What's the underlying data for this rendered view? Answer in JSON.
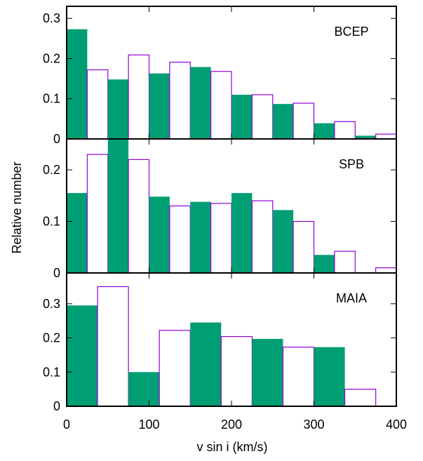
{
  "chart_data": {
    "type": "bar",
    "xlabel": "v sin i (km/s)",
    "ylabel": "Relative number",
    "xlim": [
      0,
      400
    ],
    "xticks": [
      0,
      100,
      200,
      300,
      400
    ],
    "colors": {
      "filled": "#009e73",
      "outline": "#9400d3",
      "frame": "#000000"
    },
    "panels": [
      {
        "label": "BCEP",
        "ylim": [
          0,
          0.33
        ],
        "yticks": [
          0,
          0.1,
          0.2,
          0.3
        ],
        "ytick_labels": [
          "0",
          "0.1",
          "0.2",
          "0.3"
        ],
        "bin_width": 25,
        "x": [
          0,
          25,
          50,
          75,
          100,
          125,
          150,
          175,
          200,
          225,
          250,
          275,
          300,
          325,
          350,
          375
        ],
        "values": [
          0.273,
          0.172,
          0.148,
          0.209,
          0.163,
          0.191,
          0.179,
          0.168,
          0.11,
          0.11,
          0.087,
          0.089,
          0.039,
          0.043,
          0.008,
          0.012
        ]
      },
      {
        "label": "SPB",
        "ylim": [
          0,
          0.26
        ],
        "yticks": [
          0,
          0.1,
          0.2
        ],
        "ytick_labels": [
          "0",
          "0.1",
          "0.2"
        ],
        "bin_width": 25,
        "x": [
          0,
          25,
          50,
          75,
          100,
          125,
          150,
          175,
          200,
          225,
          250,
          275,
          300,
          325,
          350,
          375
        ],
        "values": [
          0.155,
          0.23,
          0.26,
          0.22,
          0.148,
          0.13,
          0.138,
          0.135,
          0.155,
          0.14,
          0.122,
          0.1,
          0.035,
          0.042,
          0.0,
          0.01
        ]
      },
      {
        "label": "MAIA",
        "ylim": [
          0,
          0.39
        ],
        "yticks": [
          0,
          0.1,
          0.2,
          0.3
        ],
        "ytick_labels": [
          "0",
          "0.1",
          "0.2",
          "0.3"
        ],
        "bin_width": 37.5,
        "x": [
          0,
          37.5,
          75,
          112.5,
          150,
          187.5,
          225,
          262.5,
          300,
          337.5
        ],
        "values": [
          0.295,
          0.35,
          0.1,
          0.222,
          0.245,
          0.204,
          0.197,
          0.173,
          0.173,
          0.05
        ]
      }
    ]
  }
}
